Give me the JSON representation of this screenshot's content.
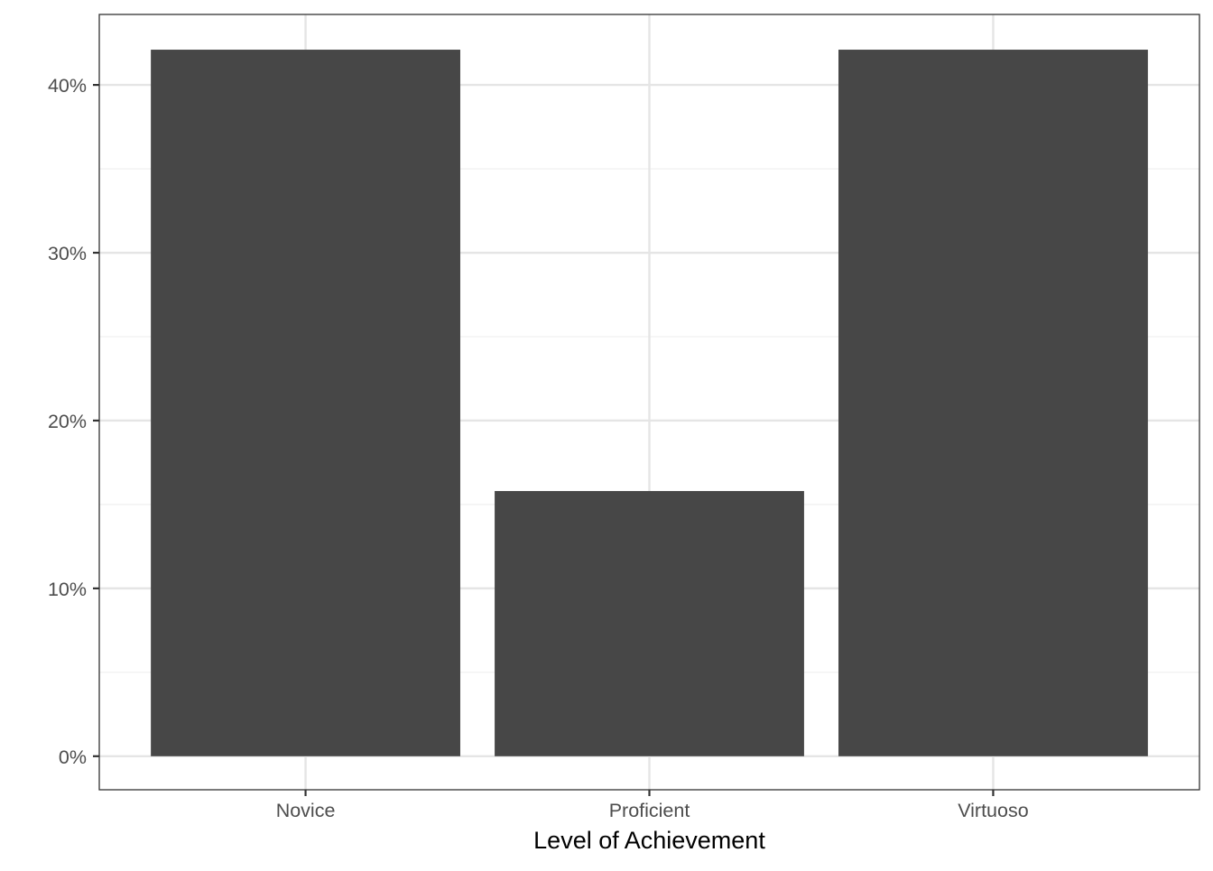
{
  "chart_data": {
    "type": "bar",
    "title": "",
    "xlabel": "Level of Achievement",
    "ylabel": "",
    "categories": [
      "Novice",
      "Proficient",
      "Virtuoso"
    ],
    "values": [
      42.1,
      15.8,
      42.1
    ],
    "value_unit": "%",
    "ylim": [
      -2,
      44.2
    ],
    "yticks": [
      0,
      10,
      20,
      30,
      40
    ],
    "ytick_labels": [
      "0%",
      "10%",
      "20%",
      "30%",
      "40%"
    ],
    "grid": true,
    "legend": "none",
    "colors": {
      "bar": "#474747",
      "panel_border": "#333333",
      "grid_major": "#e5e5e5",
      "grid_minor": "#f0f0f0",
      "tick_label": "#4d4d4d",
      "axis_title": "#000000",
      "background": "#ffffff"
    }
  }
}
